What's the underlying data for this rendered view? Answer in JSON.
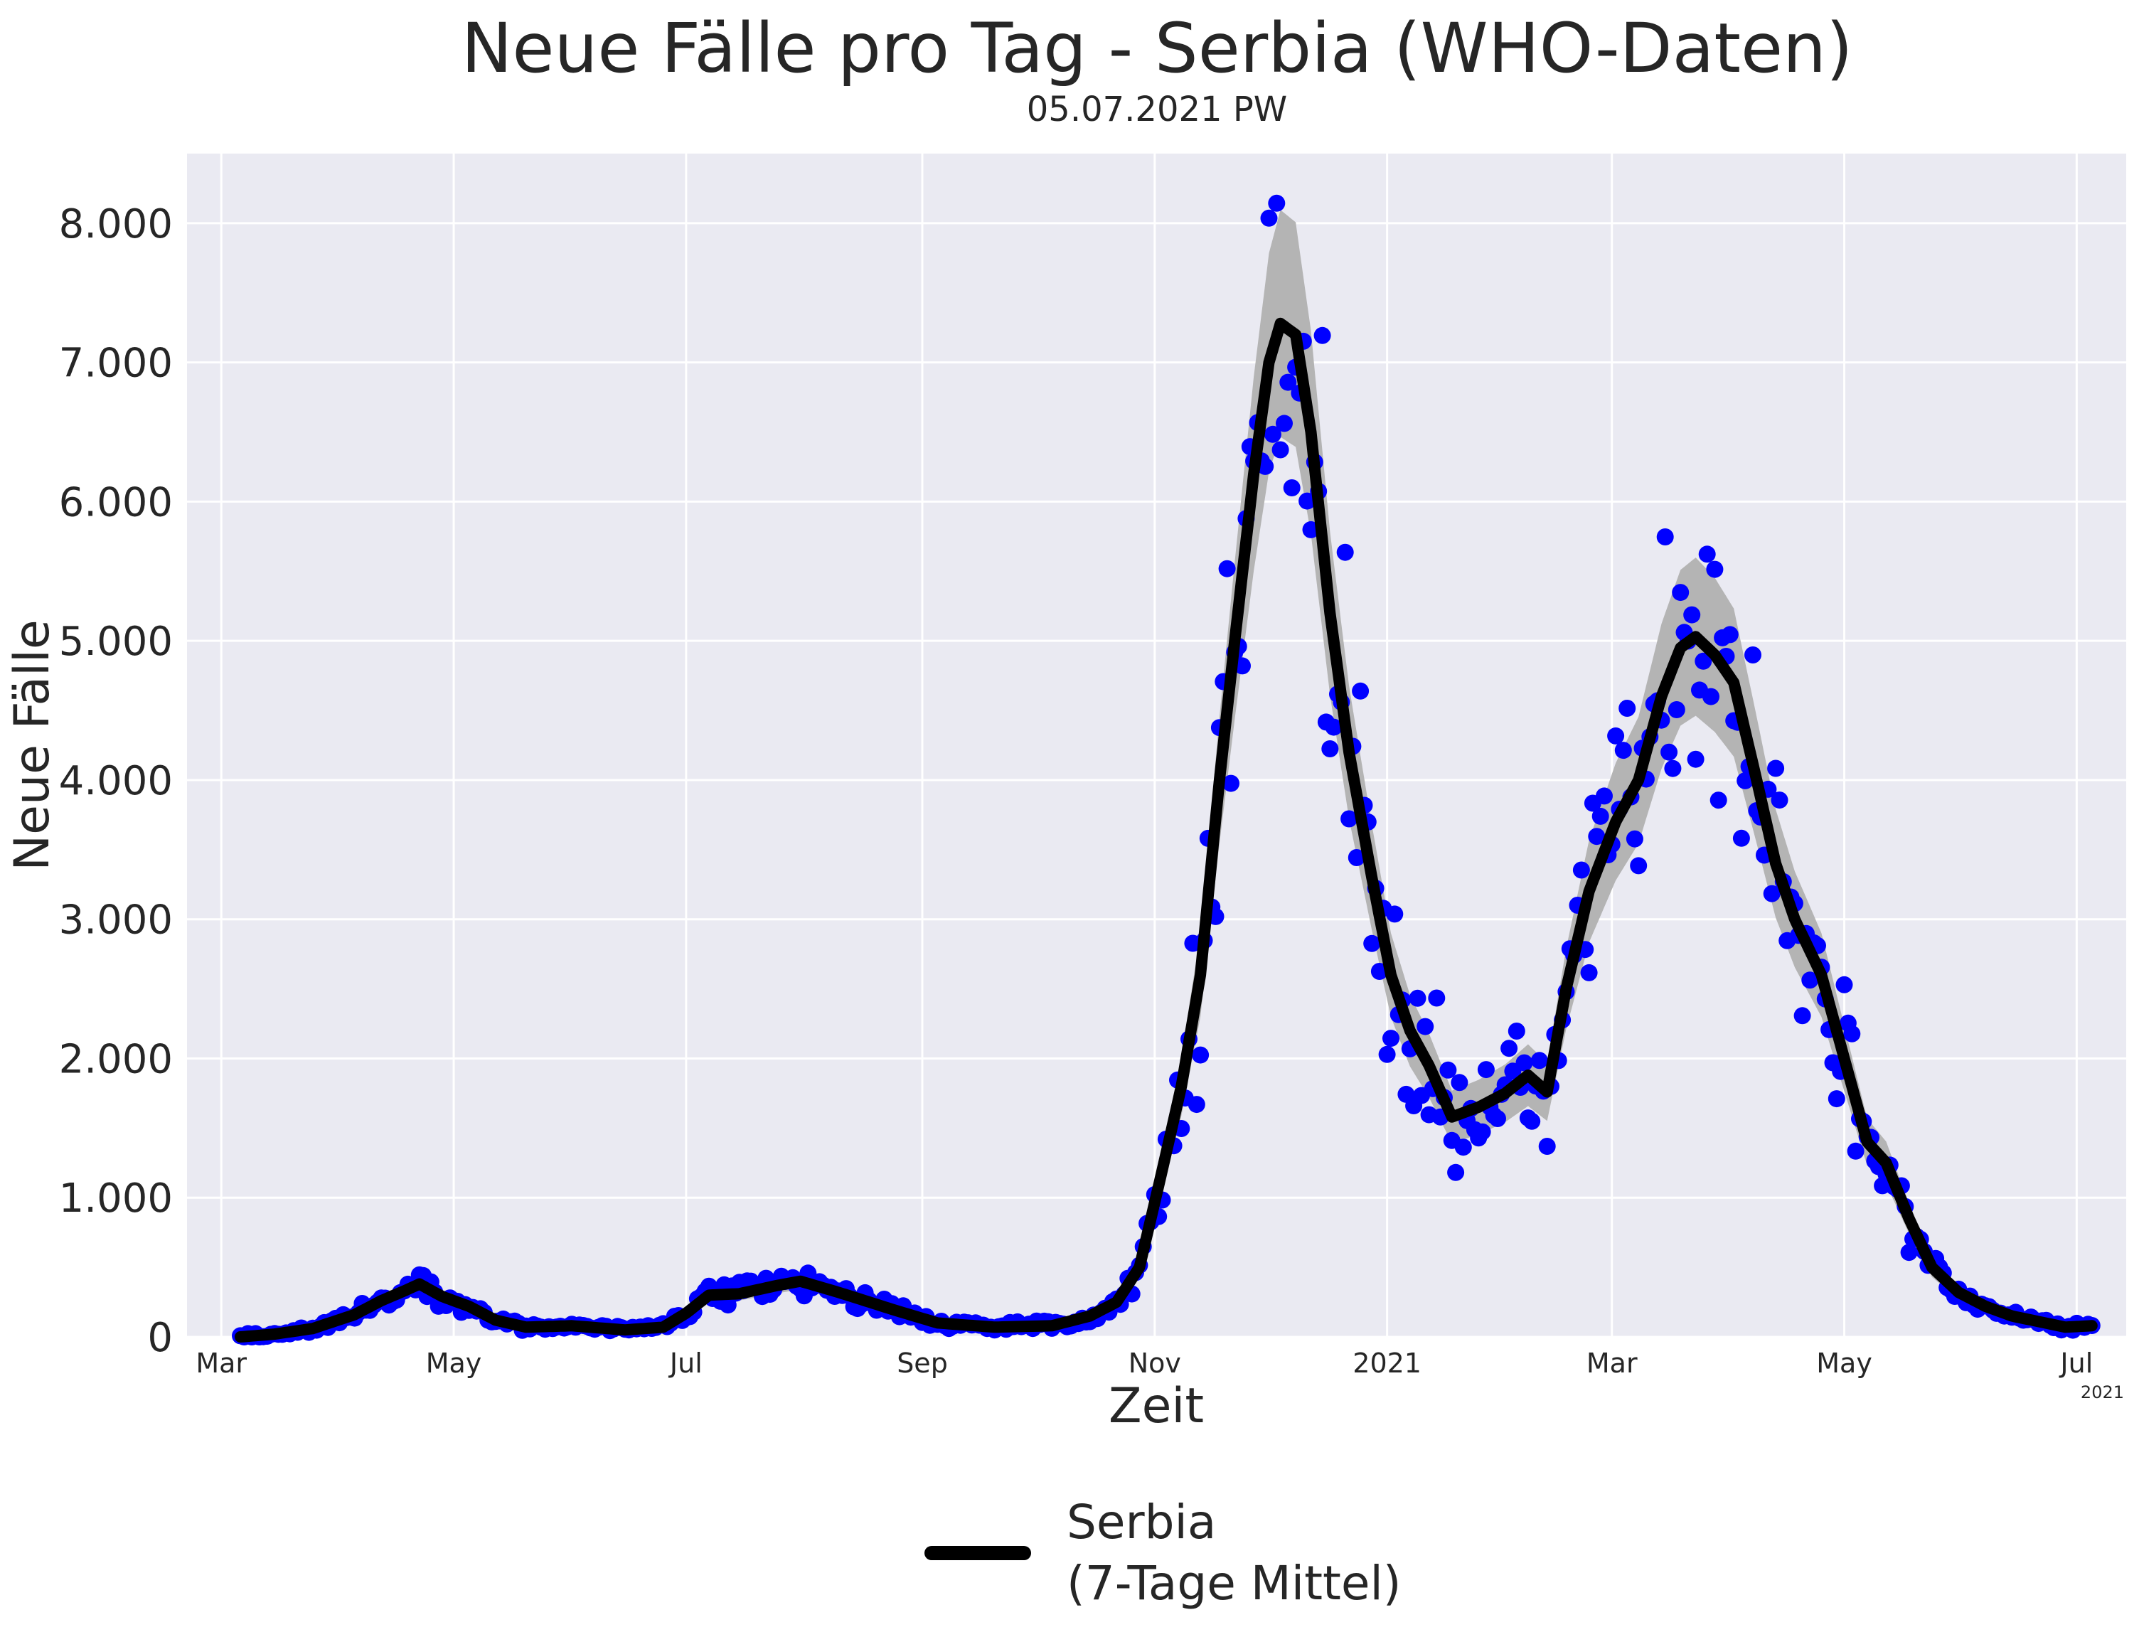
{
  "chart_data": {
    "type": "line",
    "title": "Neue Fälle pro Tag - Serbia (WHO-Daten)",
    "subtitle": "05.07.2021 PW",
    "xlabel": "Zeit",
    "ylabel": "Neue Fälle",
    "x_tick_labels": [
      "Mar",
      "May",
      "Jul",
      "Sep",
      "Nov",
      "2021",
      "Mar",
      "May",
      "Jul"
    ],
    "x_offset_label": "2021",
    "y_tick_labels": [
      "0",
      "1.000",
      "2.000",
      "3.000",
      "4.000",
      "5.000",
      "6.000",
      "7.000",
      "8.000"
    ],
    "y_ticks": [
      0,
      1000,
      2000,
      3000,
      4000,
      5000,
      6000,
      7000,
      8000
    ],
    "ylim": [
      0,
      8500
    ],
    "xlim": [
      "2020-02-21",
      "2021-07-14"
    ],
    "grid": true,
    "legend_position": "bottom-center",
    "series": [
      {
        "name": "Serbia\n(7-Tage Mittel)",
        "color": "#000000",
        "band_color": "#b4b4b4",
        "points_color": "#0000ff",
        "smoothed": [
          [
            "2020-03-06",
            0
          ],
          [
            "2020-03-15",
            20
          ],
          [
            "2020-03-25",
            60
          ],
          [
            "2020-04-05",
            160
          ],
          [
            "2020-04-12",
            260
          ],
          [
            "2020-04-18",
            330
          ],
          [
            "2020-04-22",
            380
          ],
          [
            "2020-04-28",
            290
          ],
          [
            "2020-05-05",
            220
          ],
          [
            "2020-05-12",
            120
          ],
          [
            "2020-05-20",
            70
          ],
          [
            "2020-06-01",
            80
          ],
          [
            "2020-06-15",
            50
          ],
          [
            "2020-06-25",
            70
          ],
          [
            "2020-07-01",
            170
          ],
          [
            "2020-07-07",
            300
          ],
          [
            "2020-07-15",
            310
          ],
          [
            "2020-07-25",
            370
          ],
          [
            "2020-07-31",
            400
          ],
          [
            "2020-08-10",
            320
          ],
          [
            "2020-08-25",
            190
          ],
          [
            "2020-09-05",
            100
          ],
          [
            "2020-09-20",
            70
          ],
          [
            "2020-10-05",
            80
          ],
          [
            "2020-10-15",
            150
          ],
          [
            "2020-10-22",
            250
          ],
          [
            "2020-10-28",
            500
          ],
          [
            "2020-11-03",
            1200
          ],
          [
            "2020-11-08",
            1800
          ],
          [
            "2020-11-13",
            2600
          ],
          [
            "2020-11-18",
            4000
          ],
          [
            "2020-11-22",
            5000
          ],
          [
            "2020-11-27",
            6200
          ],
          [
            "2020-12-01",
            7000
          ],
          [
            "2020-12-04",
            7280
          ],
          [
            "2020-12-08",
            7200
          ],
          [
            "2020-12-12",
            6500
          ],
          [
            "2020-12-17",
            5200
          ],
          [
            "2020-12-22",
            4200
          ],
          [
            "2020-12-28",
            3300
          ],
          [
            "2021-01-02",
            2600
          ],
          [
            "2021-01-07",
            2200
          ],
          [
            "2021-01-12",
            1950
          ],
          [
            "2021-01-18",
            1580
          ],
          [
            "2021-01-25",
            1650
          ],
          [
            "2021-02-01",
            1750
          ],
          [
            "2021-02-07",
            1880
          ],
          [
            "2021-02-12",
            1760
          ],
          [
            "2021-02-17",
            2500
          ],
          [
            "2021-02-23",
            3200
          ],
          [
            "2021-03-02",
            3700
          ],
          [
            "2021-03-08",
            4000
          ],
          [
            "2021-03-14",
            4600
          ],
          [
            "2021-03-19",
            4950
          ],
          [
            "2021-03-23",
            5030
          ],
          [
            "2021-03-28",
            4900
          ],
          [
            "2021-04-02",
            4700
          ],
          [
            "2021-04-08",
            4000
          ],
          [
            "2021-04-13",
            3400
          ],
          [
            "2021-04-18",
            3000
          ],
          [
            "2021-04-25",
            2600
          ],
          [
            "2021-05-01",
            2000
          ],
          [
            "2021-05-07",
            1400
          ],
          [
            "2021-05-12",
            1250
          ],
          [
            "2021-05-18",
            850
          ],
          [
            "2021-05-24",
            500
          ],
          [
            "2021-05-31",
            320
          ],
          [
            "2021-06-07",
            220
          ],
          [
            "2021-06-14",
            150
          ],
          [
            "2021-06-21",
            110
          ],
          [
            "2021-06-28",
            70
          ],
          [
            "2021-07-05",
            80
          ]
        ]
      }
    ]
  },
  "legend": {
    "label": "Serbia\n(7-Tage Mittel)"
  }
}
